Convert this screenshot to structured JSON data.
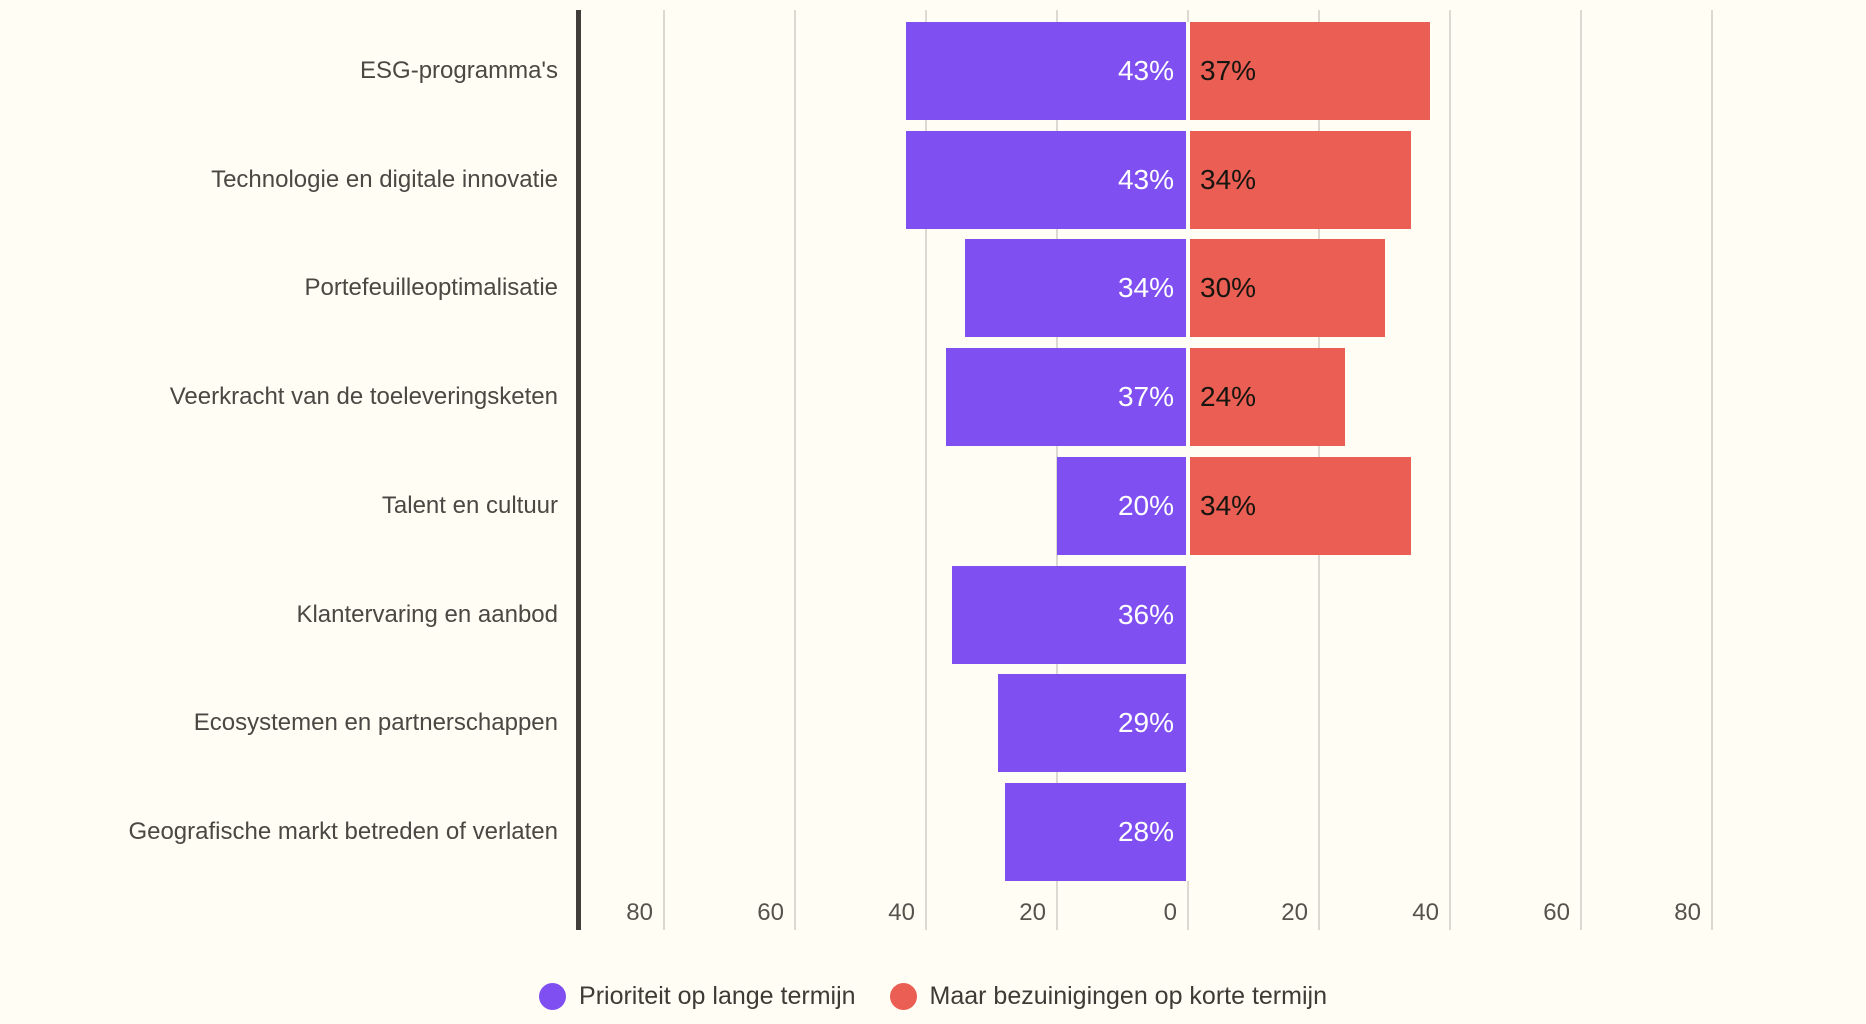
{
  "chart_data": {
    "type": "bar",
    "variant": "diverging-horizontal",
    "title": "",
    "categories": [
      "ESG-programma's",
      "Technologie en digitale innovatie",
      "Portefeuilleoptimalisatie",
      "Veerkracht van de toeleveringsketen",
      "Talent en cultuur",
      "Klantervaring en aanbod",
      "Ecosystemen en partnerschappen",
      "Geografische markt betreden of verlaten"
    ],
    "series": [
      {
        "name": "Prioriteit op lange termijn",
        "side": "left",
        "color": "#7F4FF2",
        "value_text_color": "#FFFFFF",
        "values": [
          43,
          43,
          34,
          37,
          20,
          36,
          29,
          28
        ]
      },
      {
        "name": "Maar bezuinigingen op korte termijn",
        "side": "right",
        "color": "#EB5E53",
        "value_text_color": "#16150F",
        "values": [
          37,
          34,
          30,
          24,
          34,
          null,
          null,
          null
        ]
      }
    ],
    "value_suffix": "%",
    "x_axis": {
      "tick_labels": [
        "80",
        "60",
        "40",
        "20",
        "0",
        "20",
        "40",
        "60",
        "80"
      ],
      "tick_values": [
        -80,
        -60,
        -40,
        -20,
        0,
        20,
        40,
        60,
        80
      ]
    },
    "grid": true,
    "legend_position": "bottom-center"
  },
  "colors": {
    "background": "#FFFDF4",
    "gridline": "#DCD9D2",
    "axis_line": "#3F3E3B",
    "category_text": "#4A4843",
    "tick_text": "#55534D",
    "legend_text": "#3C3B35"
  }
}
